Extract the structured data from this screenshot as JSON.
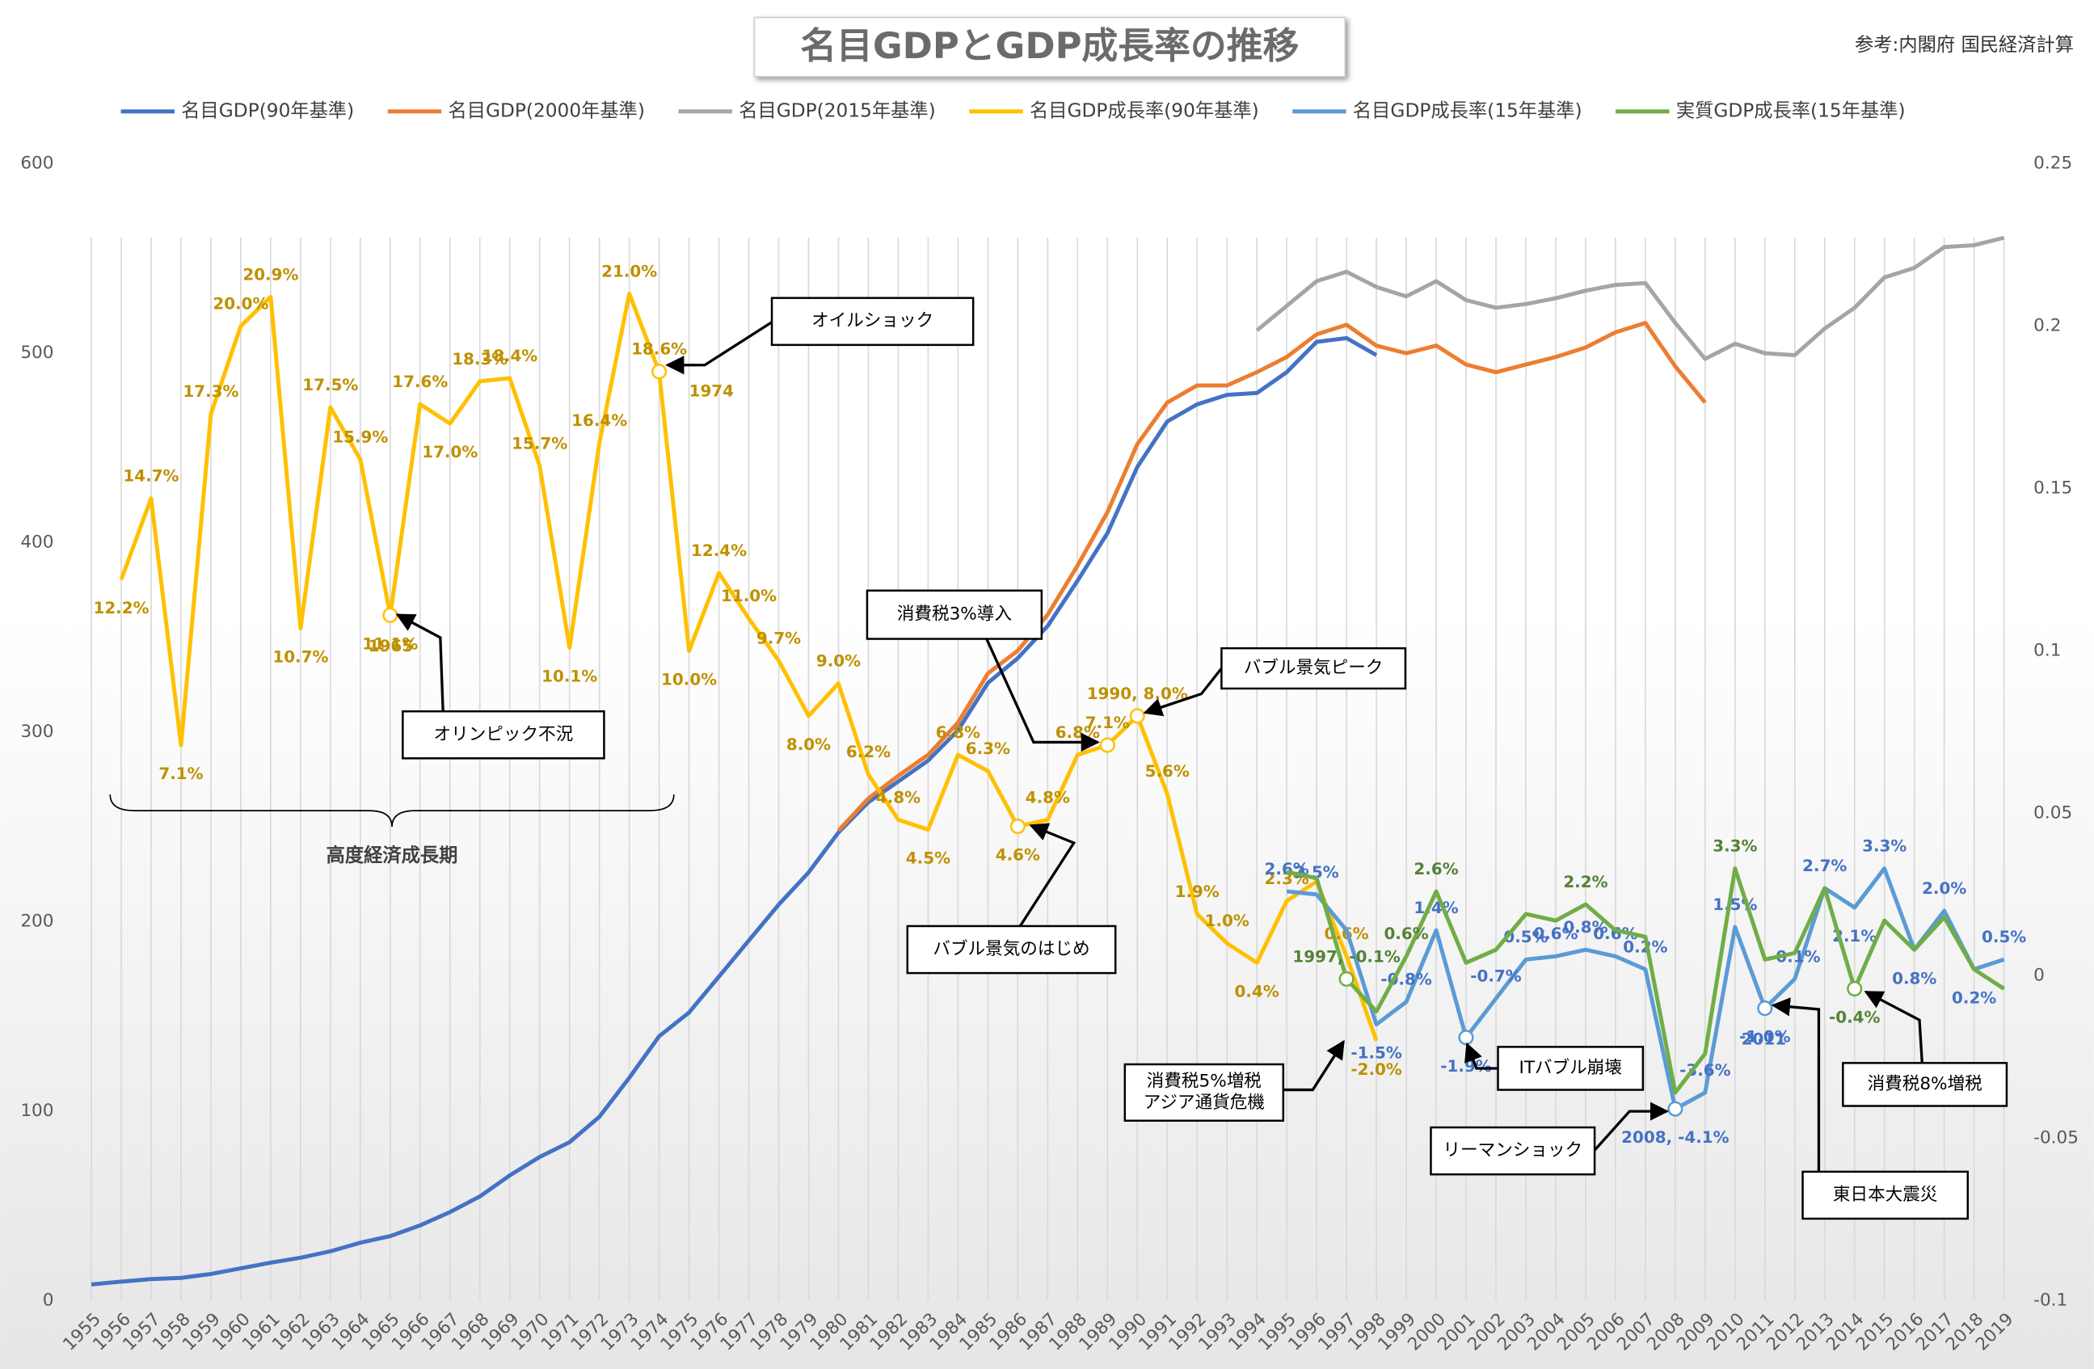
{
  "chart_data": {
    "type": "line",
    "title": "名目GDPとGDP成長率の推移",
    "source": "参考:内閣府 国民経済計算",
    "categories": [
      "1955",
      "1956",
      "1957",
      "1958",
      "1959",
      "1960",
      "1961",
      "1962",
      "1963",
      "1964",
      "1965",
      "1966",
      "1967",
      "1968",
      "1969",
      "1970",
      "1971",
      "1972",
      "1973",
      "1974",
      "1975",
      "1976",
      "1977",
      "1978",
      "1979",
      "1980",
      "1981",
      "1982",
      "1983",
      "1984",
      "1985",
      "1986",
      "1987",
      "1988",
      "1989",
      "1990",
      "1991",
      "1992",
      "1993",
      "1994",
      "1995",
      "1996",
      "1997",
      "1998",
      "1999",
      "2000",
      "2001",
      "2002",
      "2003",
      "2004",
      "2005",
      "2006",
      "2007",
      "2008",
      "2009",
      "2010",
      "2011",
      "2012",
      "2013",
      "2014",
      "2015",
      "2016",
      "2017",
      "2018",
      "2019"
    ],
    "ylim": [
      0,
      600
    ],
    "yticks": [
      0,
      100,
      200,
      300,
      400,
      500,
      600
    ],
    "y2lim": [
      -0.1,
      0.25
    ],
    "y2ticks": [
      -0.1,
      -0.05,
      0,
      0.05,
      0.1,
      0.15,
      0.2,
      0.25
    ],
    "series": [
      {
        "name": "名目GDP(90年基準)",
        "color": "#4472c4",
        "values": [
          8.5,
          10,
          11.3,
          12,
          14,
          17,
          20,
          22.6,
          26,
          30.5,
          34,
          39.7,
          46.7,
          55,
          66,
          75.8,
          83.6,
          97,
          117.6,
          139.5,
          152,
          171,
          190,
          209,
          226,
          247,
          263,
          274,
          285,
          301,
          326,
          339,
          356,
          380,
          405,
          440,
          464,
          473,
          478,
          479,
          490,
          506,
          508,
          499,
          null,
          null,
          null,
          null,
          null,
          null,
          null,
          null,
          null,
          null,
          null,
          null,
          null,
          null,
          null,
          null,
          null,
          null,
          null,
          null,
          null
        ]
      },
      {
        "name": "名目GDP(2000年基準)",
        "color": "#ed7d31",
        "values": [
          null,
          null,
          null,
          null,
          null,
          null,
          null,
          null,
          null,
          null,
          null,
          null,
          null,
          null,
          null,
          null,
          null,
          null,
          null,
          null,
          null,
          null,
          null,
          null,
          null,
          248,
          265,
          277,
          288,
          305,
          331,
          343,
          362,
          388,
          416,
          452,
          474,
          483,
          483,
          490,
          498,
          510,
          515,
          504,
          500,
          504,
          494,
          490,
          494,
          498,
          503,
          511,
          516,
          493,
          474,
          null,
          null,
          null,
          null,
          null,
          null,
          null,
          null,
          null,
          null
        ]
      },
      {
        "name": "名目GDP(2015年基準)",
        "color": "#a5a5a5",
        "values": [
          null,
          null,
          null,
          null,
          null,
          null,
          null,
          null,
          null,
          null,
          null,
          null,
          null,
          null,
          null,
          null,
          null,
          null,
          null,
          null,
          null,
          null,
          null,
          null,
          null,
          null,
          null,
          null,
          null,
          null,
          null,
          null,
          null,
          null,
          null,
          null,
          null,
          null,
          null,
          512,
          525,
          538,
          543,
          535,
          530,
          538,
          528,
          524,
          526,
          529,
          533,
          536,
          537,
          516,
          497,
          505,
          500,
          499,
          513,
          524,
          540,
          545,
          556,
          557,
          561
        ]
      },
      {
        "name": "名目GDP成長率(90年基準)",
        "color": "#ffc000",
        "axis": "y2",
        "label_color": "#bf9000",
        "values": [
          null,
          0.122,
          0.147,
          0.071,
          0.173,
          0.2,
          0.209,
          0.107,
          0.175,
          0.159,
          0.111,
          0.176,
          0.17,
          0.183,
          0.184,
          0.157,
          0.101,
          0.164,
          0.21,
          0.186,
          0.1,
          0.124,
          0.11,
          0.097,
          0.08,
          0.09,
          0.062,
          0.048,
          0.045,
          0.068,
          0.063,
          0.046,
          0.048,
          0.068,
          0.071,
          0.08,
          0.056,
          0.019,
          0.01,
          0.004,
          0.023,
          0.029,
          0.006,
          -0.02,
          null,
          null,
          null,
          null,
          null,
          null,
          null,
          null,
          null,
          null,
          null,
          null,
          null,
          null,
          null,
          null,
          null,
          null,
          null,
          null,
          null
        ],
        "value_labels": [
          null,
          "12.2%",
          "14.7%",
          "7.1%",
          "17.3%",
          "20.0%",
          "20.9%",
          "10.7%",
          "17.5%",
          "15.9%",
          "11.1%",
          "17.6%",
          "17.0%",
          "18.3%",
          "18.4%",
          "15.7%",
          "10.1%",
          "16.4%",
          "21.0%",
          "18.6%",
          "10.0%",
          "12.4%",
          "11.0%",
          "9.7%",
          "8.0%",
          "9.0%",
          "6.2%",
          "4.8%",
          "4.5%",
          "6.8%",
          "6.3%",
          "4.6%",
          "4.8%",
          "6.8%",
          "7.1%",
          "1990, 8.0%",
          "5.6%",
          "1.9%",
          "1.0%",
          "0.4%",
          "2.3%",
          null,
          "0.6%",
          "-2.0%",
          null,
          null,
          null,
          null,
          null,
          null,
          null,
          null,
          null,
          null,
          null,
          null,
          null,
          null,
          null,
          null,
          null,
          null,
          null,
          null,
          null
        ]
      },
      {
        "name": "名目GDP成長率(15年基準)",
        "color": "#5b9bd5",
        "axis": "y2",
        "label_color": "#4472c4",
        "values": [
          null,
          null,
          null,
          null,
          null,
          null,
          null,
          null,
          null,
          null,
          null,
          null,
          null,
          null,
          null,
          null,
          null,
          null,
          null,
          null,
          null,
          null,
          null,
          null,
          null,
          null,
          null,
          null,
          null,
          null,
          null,
          null,
          null,
          null,
          null,
          null,
          null,
          null,
          null,
          null,
          0.026,
          0.025,
          0.014,
          -0.015,
          -0.008,
          0.014,
          -0.019,
          -0.007,
          0.005,
          0.006,
          0.008,
          0.006,
          0.002,
          -0.041,
          -0.036,
          0.015,
          -0.01,
          -0.001,
          0.027,
          0.021,
          0.033,
          0.008,
          0.02,
          0.002,
          0.005
        ],
        "value_labels": [
          null,
          null,
          null,
          null,
          null,
          null,
          null,
          null,
          null,
          null,
          null,
          null,
          null,
          null,
          null,
          null,
          null,
          null,
          null,
          null,
          null,
          null,
          null,
          null,
          null,
          null,
          null,
          null,
          null,
          null,
          null,
          null,
          null,
          null,
          null,
          null,
          null,
          null,
          null,
          null,
          "2.6%",
          "2.5%",
          null,
          "-1.5%",
          "-0.8%",
          "1.4%",
          "-1.9%",
          "-0.7%",
          "0.5%",
          "0.6%",
          "0.8%",
          "0.6%",
          "0.2%",
          "2008, -4.1%",
          "-3.6%",
          "1.5%",
          "-1.0%",
          "-0.1%",
          "2.7%",
          "2.1%",
          "3.3%",
          "0.8%",
          "2.0%",
          "0.2%",
          "0.5%"
        ]
      },
      {
        "name": "実質GDP成長率(15年基準)",
        "color": "#70ad47",
        "axis": "y2",
        "label_color": "#548235",
        "values": [
          null,
          null,
          null,
          null,
          null,
          null,
          null,
          null,
          null,
          null,
          null,
          null,
          null,
          null,
          null,
          null,
          null,
          null,
          null,
          null,
          null,
          null,
          null,
          null,
          null,
          null,
          null,
          null,
          null,
          null,
          null,
          null,
          null,
          null,
          null,
          null,
          null,
          null,
          null,
          null,
          0.032,
          0.03,
          -0.001,
          -0.011,
          0.006,
          0.026,
          0.004,
          0.008,
          0.019,
          0.017,
          0.022,
          0.014,
          0.012,
          -0.036,
          -0.024,
          0.033,
          0.005,
          0.007,
          0.027,
          -0.004,
          0.017,
          0.008,
          0.018,
          0.002,
          -0.004
        ],
        "value_labels": [
          null,
          null,
          null,
          null,
          null,
          null,
          null,
          null,
          null,
          null,
          null,
          null,
          null,
          null,
          null,
          null,
          null,
          null,
          null,
          null,
          null,
          null,
          null,
          null,
          null,
          null,
          null,
          null,
          null,
          null,
          null,
          null,
          null,
          null,
          null,
          null,
          null,
          null,
          null,
          null,
          null,
          null,
          "1997, -0.1%",
          null,
          "0.6%",
          "2.6%",
          null,
          null,
          null,
          null,
          "2.2%",
          null,
          null,
          null,
          null,
          "3.3%",
          null,
          null,
          null,
          "-0.4%",
          null,
          null,
          null,
          null,
          null
        ]
      }
    ],
    "annotations": [
      "オイルショック",
      "オリンピック不況",
      "消費税3%導入",
      "バブル景気ピーク",
      "バブル景気のはじめ",
      "消費税5%増税",
      "アジア通貨危機",
      "ITバブル崩壊",
      "リーマンショック",
      "東日本大震災",
      "消費税8%増税",
      "高度経済成長期",
      "1965",
      "1974",
      "2011"
    ]
  }
}
